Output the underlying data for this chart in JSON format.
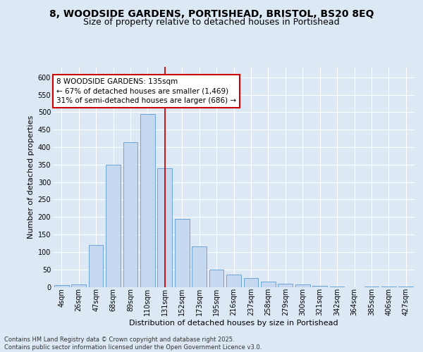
{
  "title_line1": "8, WOODSIDE GARDENS, PORTISHEAD, BRISTOL, BS20 8EQ",
  "title_line2": "Size of property relative to detached houses in Portishead",
  "xlabel": "Distribution of detached houses by size in Portishead",
  "ylabel": "Number of detached properties",
  "categories": [
    "4sqm",
    "26sqm",
    "47sqm",
    "68sqm",
    "89sqm",
    "110sqm",
    "131sqm",
    "152sqm",
    "173sqm",
    "195sqm",
    "216sqm",
    "237sqm",
    "258sqm",
    "279sqm",
    "300sqm",
    "321sqm",
    "342sqm",
    "364sqm",
    "385sqm",
    "406sqm",
    "427sqm"
  ],
  "values": [
    5,
    8,
    120,
    350,
    415,
    495,
    340,
    195,
    115,
    50,
    35,
    25,
    16,
    10,
    8,
    3,
    1,
    0,
    2,
    1,
    2
  ],
  "bar_color": "#c5d8f0",
  "bar_edge_color": "#5b9bd5",
  "vline_x_index": 6,
  "vline_color": "#cc0000",
  "annotation_text": "8 WOODSIDE GARDENS: 135sqm\n← 67% of detached houses are smaller (1,469)\n31% of semi-detached houses are larger (686) →",
  "annotation_box_color": "#cc0000",
  "ylim": [
    0,
    630
  ],
  "yticks": [
    0,
    50,
    100,
    150,
    200,
    250,
    300,
    350,
    400,
    450,
    500,
    550,
    600
  ],
  "bg_color": "#dce9f5",
  "plot_bg_color": "#dce9f5",
  "footer_text": "Contains HM Land Registry data © Crown copyright and database right 2025.\nContains public sector information licensed under the Open Government Licence v3.0.",
  "title_fontsize": 10,
  "title2_fontsize": 9,
  "axis_label_fontsize": 8,
  "tick_fontsize": 7,
  "annotation_fontsize": 7.5,
  "footer_fontsize": 6
}
